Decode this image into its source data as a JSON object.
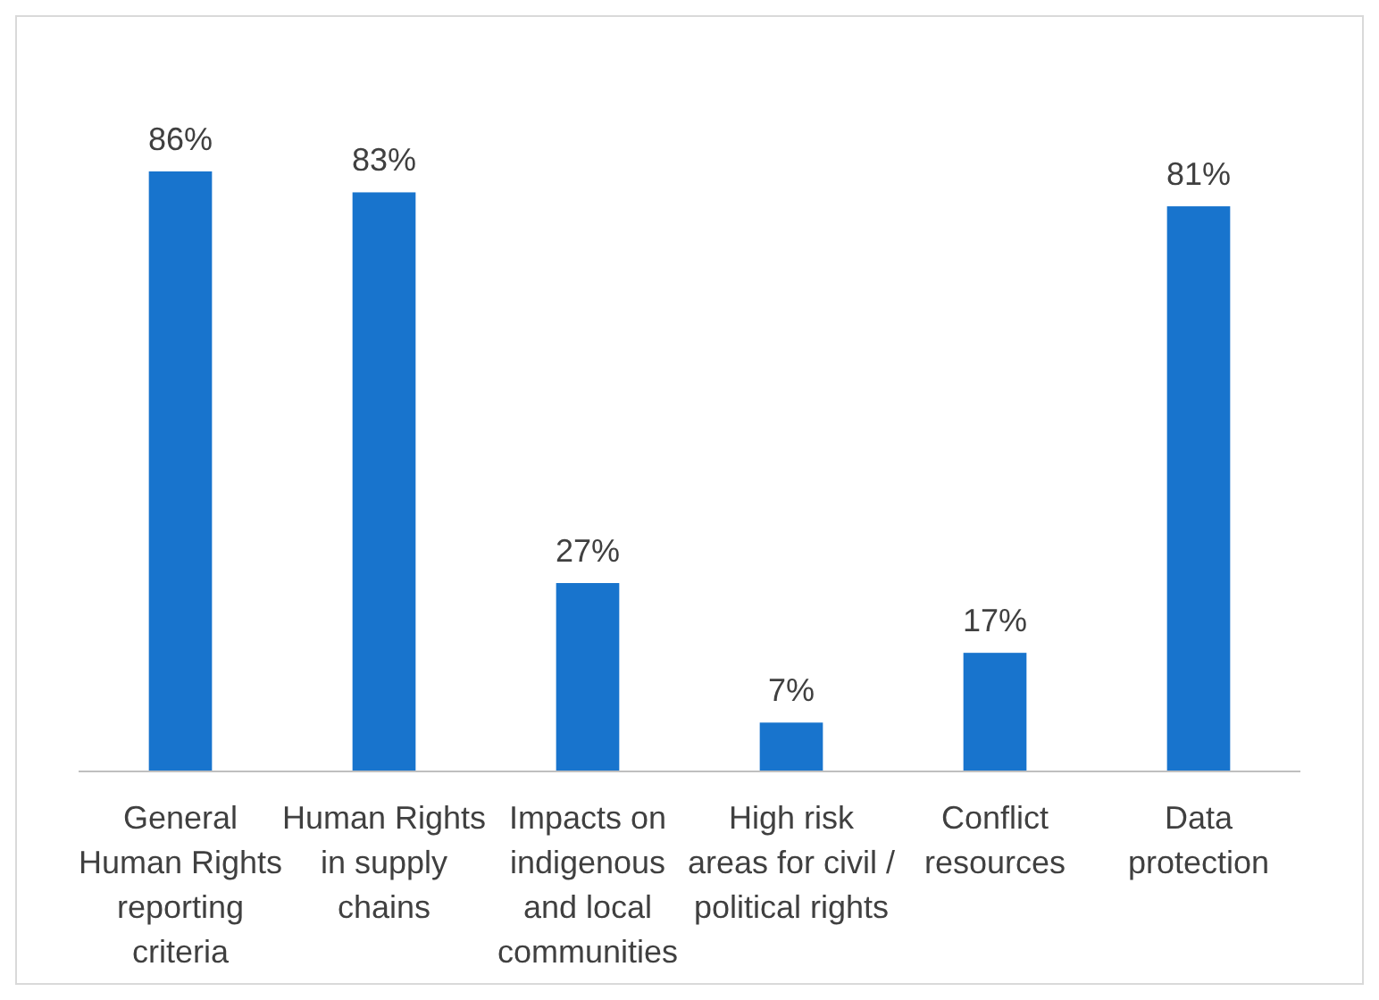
{
  "chart_data": {
    "type": "bar",
    "categories": [
      "General Human Rights reporting criteria",
      "Human Rights in supply chains",
      "Impacts on indigenous and local communities",
      "High risk areas for civil / political rights",
      "Conflict resources",
      "Data protection"
    ],
    "values": [
      86,
      83,
      27,
      7,
      17,
      81
    ],
    "color": "#1874cd",
    "value_labels": [
      "86%",
      "83%",
      "27%",
      "7%",
      "17%",
      "81%"
    ]
  }
}
